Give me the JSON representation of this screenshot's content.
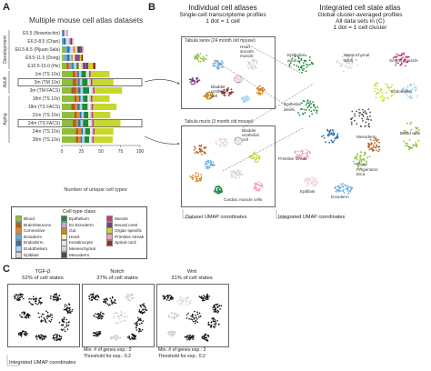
{
  "panelA": {
    "letter": "A",
    "title": "Multiple mouse cell atlas datasets",
    "group_labels": [
      "Development",
      "Adult",
      "Aging"
    ],
    "xlabel": "Number of unique cell types",
    "ticks": [
      "0",
      "25",
      "50",
      "75",
      "100"
    ]
  },
  "chart_data": {
    "type": "bar",
    "stacked": true,
    "categories": [
      "E5.5 (Nowotschin)",
      "E6.5-8.5 (Chan)",
      "E6.5-8.5 (Pijuan-Sala)",
      "E9.5-11.5 (Dong)",
      "E10.5-15.0 (He)",
      "1m (TS 10x)",
      "3m (TM 10x)",
      "3m (TM FACS)",
      "18m (TS 10x)",
      "18m (TS FACS)",
      "21m (TS 10x)",
      "24m (TS FACS)",
      "24m (TS 10x)",
      "30m (TS 10x)"
    ],
    "xlabel": "Number of unique cell types",
    "xlim": [
      0,
      100
    ],
    "highlighted": [
      "3m (TM 10x)",
      "24m (TS FACS)"
    ],
    "series": [
      {
        "name": "Blood",
        "color": "#8fbe3a",
        "values": [
          0,
          0,
          4,
          2,
          6,
          14,
          14,
          12,
          16,
          12,
          16,
          14,
          18,
          18
        ]
      },
      {
        "name": "Brain/Neurons",
        "color": "#b45a1a",
        "values": [
          0,
          0,
          0,
          0,
          3,
          3,
          4,
          6,
          3,
          5,
          3,
          4,
          3,
          3
        ]
      },
      {
        "name": "Connective",
        "color": "#e08a2a",
        "values": [
          0,
          0,
          0,
          1,
          2,
          3,
          3,
          3,
          3,
          3,
          4,
          3,
          4,
          3
        ]
      },
      {
        "name": "Ectoderm",
        "color": "#6aa8d8",
        "values": [
          1,
          2,
          3,
          4,
          2,
          0,
          0,
          0,
          0,
          0,
          0,
          0,
          0,
          0
        ]
      },
      {
        "name": "Endoderm",
        "color": "#2f6fb0",
        "values": [
          2,
          3,
          3,
          3,
          2,
          2,
          2,
          3,
          2,
          3,
          2,
          3,
          2,
          2
        ]
      },
      {
        "name": "Endothelium",
        "color": "#a8d4ec",
        "values": [
          0,
          1,
          2,
          2,
          4,
          3,
          3,
          3,
          3,
          3,
          3,
          3,
          3,
          3
        ]
      },
      {
        "name": "Epiblast",
        "color": "#f0cfe0",
        "values": [
          3,
          3,
          2,
          0,
          0,
          0,
          0,
          0,
          0,
          0,
          0,
          0,
          0,
          0
        ]
      },
      {
        "name": "Epithelium",
        "color": "#1a8c3a",
        "values": [
          0,
          0,
          0,
          0,
          2,
          6,
          7,
          8,
          6,
          7,
          6,
          7,
          6,
          6
        ]
      },
      {
        "name": "Ex Ectoderm",
        "color": "#c8a0d8",
        "values": [
          2,
          2,
          1,
          0,
          0,
          0,
          0,
          0,
          0,
          0,
          0,
          0,
          0,
          0
        ]
      },
      {
        "name": "Gut",
        "color": "#c88a1a",
        "values": [
          0,
          0,
          2,
          2,
          1,
          0,
          0,
          0,
          0,
          0,
          0,
          0,
          0,
          0
        ]
      },
      {
        "name": "Heart",
        "color": "#f7f2c0",
        "values": [
          0,
          0,
          1,
          1,
          2,
          1,
          1,
          1,
          1,
          1,
          1,
          1,
          1,
          1
        ]
      },
      {
        "name": "Keratinocyte",
        "color": "#e6e6e6",
        "values": [
          0,
          0,
          0,
          0,
          0,
          1,
          1,
          2,
          1,
          2,
          1,
          2,
          1,
          1
        ]
      },
      {
        "name": "Mesenchymal",
        "color": "#d2d2d2",
        "values": [
          0,
          0,
          2,
          2,
          3,
          2,
          2,
          2,
          2,
          2,
          2,
          2,
          2,
          2
        ]
      },
      {
        "name": "Mesoderm",
        "color": "#4a4a4a",
        "values": [
          0,
          2,
          4,
          2,
          2,
          0,
          0,
          0,
          0,
          0,
          0,
          0,
          0,
          0
        ]
      },
      {
        "name": "Muscle",
        "color": "#c43a7a",
        "values": [
          0,
          0,
          0,
          1,
          2,
          2,
          2,
          2,
          2,
          2,
          2,
          2,
          2,
          2
        ]
      },
      {
        "name": "Neural crest",
        "color": "#7a3a8a",
        "values": [
          0,
          0,
          2,
          3,
          3,
          0,
          0,
          0,
          0,
          0,
          0,
          0,
          0,
          0
        ]
      },
      {
        "name": "Organ specific",
        "color": "#c8d82a",
        "values": [
          0,
          0,
          0,
          2,
          6,
          24,
          27,
          35,
          22,
          30,
          22,
          34,
          24,
          24
        ]
      },
      {
        "name": "Primitive streak",
        "color": "#f0a0b8",
        "values": [
          0,
          2,
          2,
          0,
          0,
          0,
          0,
          0,
          0,
          0,
          0,
          0,
          0,
          0
        ]
      },
      {
        "name": "Spinal cord",
        "color": "#9a2a2a",
        "values": [
          0,
          0,
          0,
          2,
          3,
          0,
          0,
          0,
          0,
          0,
          0,
          0,
          0,
          0
        ]
      }
    ]
  },
  "legend": {
    "title": "Cell type class",
    "items": [
      {
        "label": "Blood",
        "color": "#8fbe3a"
      },
      {
        "label": "Brain/Neurons",
        "color": "#b45a1a"
      },
      {
        "label": "Connective",
        "color": "#e08a2a"
      },
      {
        "label": "Ectoderm",
        "color": "#6aa8d8"
      },
      {
        "label": "Endoderm",
        "color": "#2f6fb0"
      },
      {
        "label": "Endothelium",
        "color": "#a8d4ec"
      },
      {
        "label": "Epiblast",
        "color": "#f0cfe0"
      },
      {
        "label": "Epithelium",
        "color": "#1a8c3a"
      },
      {
        "label": "Ex Ectoderm",
        "color": "#c8a0d8"
      },
      {
        "label": "Gut",
        "color": "#c88a1a"
      },
      {
        "label": "Heart",
        "color": "#f7f2c0"
      },
      {
        "label": "Keratinocyte",
        "color": "#e6e6e6"
      },
      {
        "label": "Mesenchymal",
        "color": "#d2d2d2"
      },
      {
        "label": "Mesoderm",
        "color": "#4a4a4a"
      },
      {
        "label": "Muscle",
        "color": "#c43a7a"
      },
      {
        "label": "Neural crest",
        "color": "#7a3a8a"
      },
      {
        "label": "Organ specific",
        "color": "#c8d82a"
      },
      {
        "label": "Primitive streak",
        "color": "#f0a0b8"
      },
      {
        "label": "Spinal cord",
        "color": "#9a2a2a"
      }
    ]
  },
  "panelB": {
    "letter": "B",
    "left_title": "Individual cell atlases",
    "left_sub1": "Single-cell transcriptome profiles",
    "left_sub2": "1 dot = 1 cell",
    "right_title": "Integrated cell state atlas",
    "right_sub1": "Global cluster-averaged profiles",
    "right_sub2": "All data sets in (C)",
    "right_sub3": "1 dot = 1 cell cluster",
    "senis_title": "Tabula senis (24 month old mouse)",
    "muris_title": "Tabula muris (3 month old mouse)",
    "senis_labels": [
      "Heart",
      "smooth",
      "muscle",
      "Bladder",
      "urothelial",
      "cell"
    ],
    "muris_labels": [
      "Bladder",
      "urothelial",
      "cell",
      "Cardiac muscle cells"
    ],
    "integrated_labels": [
      "Epithelial",
      "adult",
      "Mesenchymal",
      "adult",
      "Smooth muscle",
      "Endothelial",
      "Epithelial",
      "devel.",
      "Mesoderm",
      "Blood cells",
      "Primitive streak",
      "Blood",
      "Progenitors",
      "E8.5",
      "Epiblast",
      "Ectoderm"
    ],
    "dataset_umap": "Dataset UMAP coordinates",
    "integrated_umap": "Integrated UMAP coordinates"
  },
  "panelC": {
    "letter": "C",
    "maps": [
      {
        "name": "TGF-β",
        "pct": "52% of cell states"
      },
      {
        "name": "Notch",
        "pct": "37% of cell states"
      },
      {
        "name": "Wnt",
        "pct": "31% of cell states"
      }
    ],
    "min_genes": "Min. # of genes exp.: 2",
    "threshold": "Threshold for exp.: 0.2",
    "umap_label": "Integrated UMAP coordinates"
  }
}
